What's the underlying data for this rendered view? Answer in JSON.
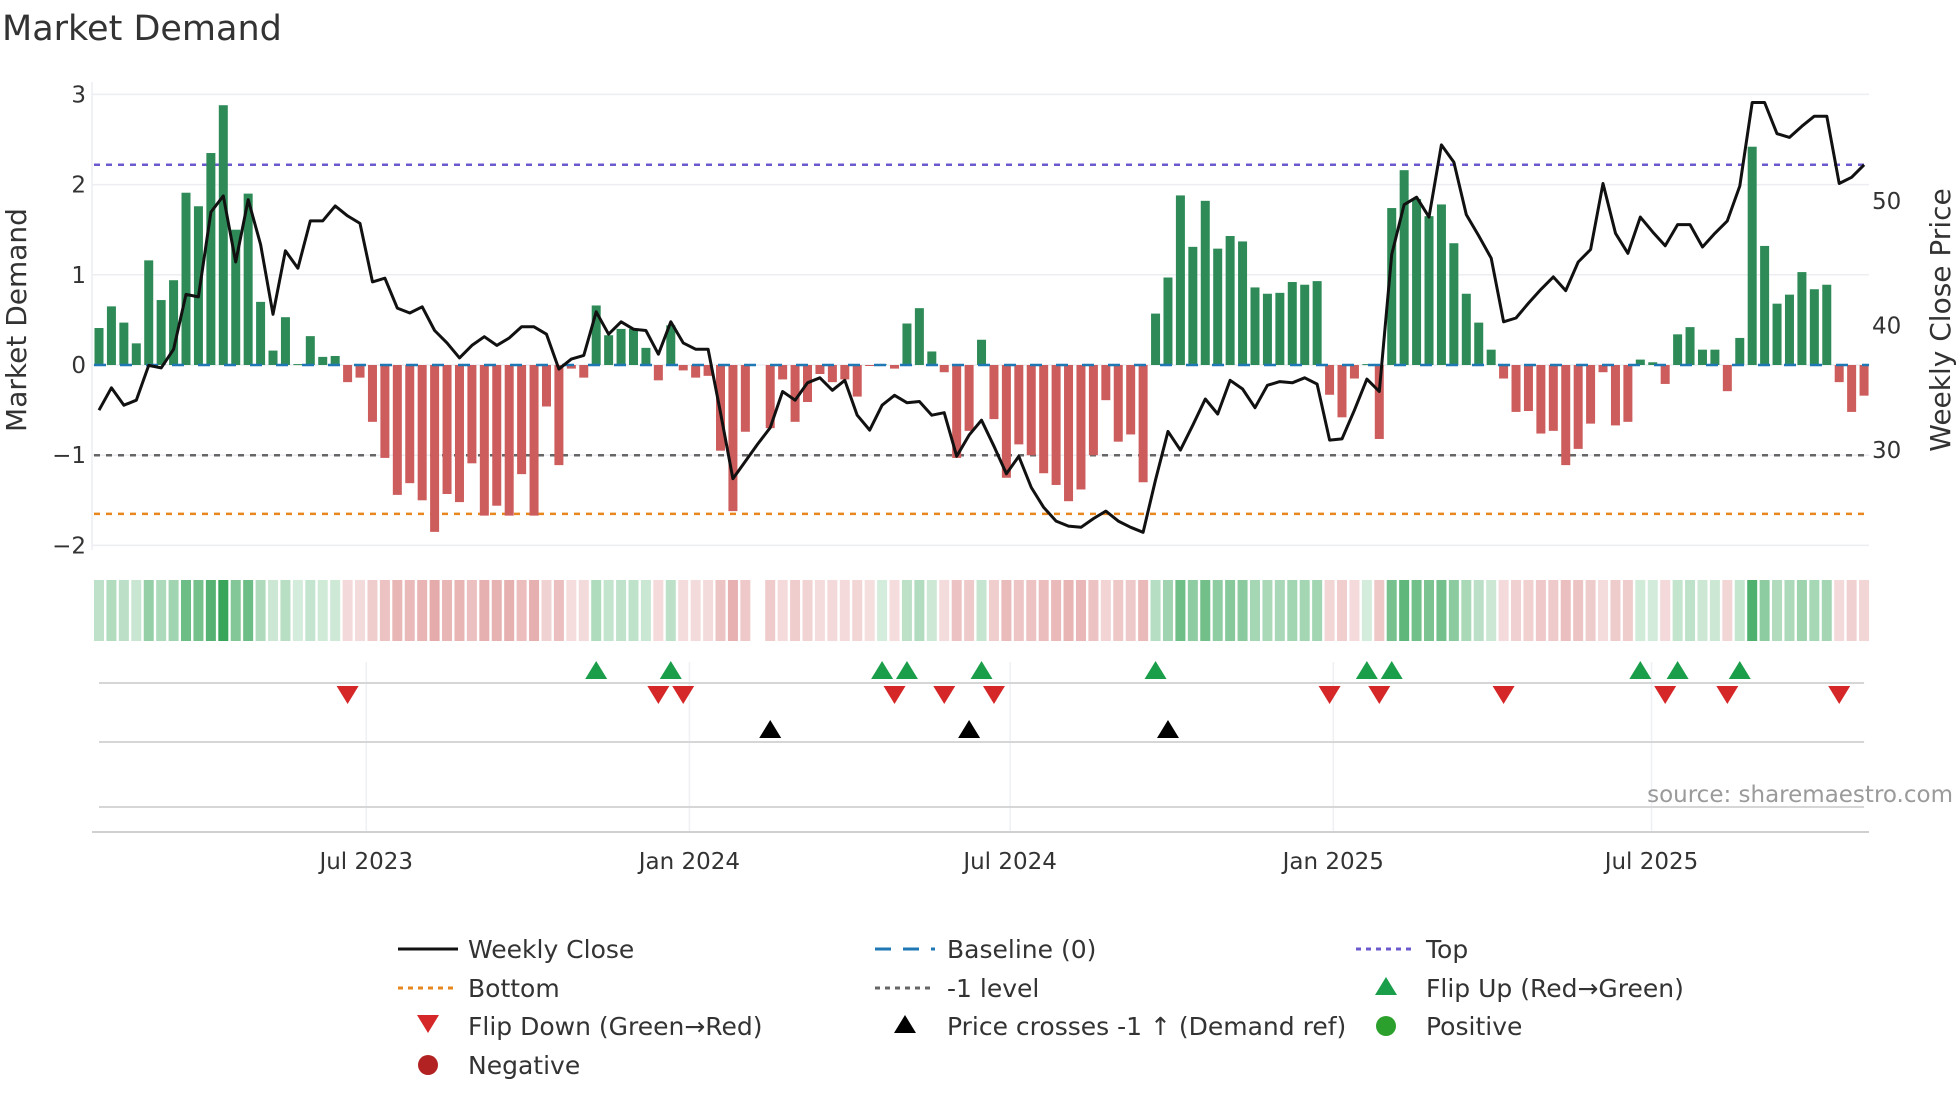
{
  "title": "Market Demand",
  "source": "source: sharemaestro.com",
  "colors": {
    "positive_bar": "#2e8b57",
    "negative_bar": "#cd5c5c",
    "price_line": "#111111",
    "baseline": "#1f77b4",
    "top": "#6a5acd",
    "bottom": "#e8871e",
    "minus_one": "#666666",
    "flip_up": "#1a9e4a",
    "flip_down": "#d62728",
    "price_cross": "#000000",
    "positive_dot": "#2ca02c",
    "negative_dot": "#b22222"
  },
  "legend": [
    {
      "label": "Weekly Close",
      "kind": "line-solid",
      "color": "#111111"
    },
    {
      "label": "Baseline (0)",
      "kind": "line-dashed",
      "color": "#1f77b4"
    },
    {
      "label": "Top",
      "kind": "line-dotted",
      "color": "#6a5acd"
    },
    {
      "label": "Bottom",
      "kind": "line-dotted",
      "color": "#e8871e"
    },
    {
      "label": "-1 level",
      "kind": "line-dotted",
      "color": "#666666"
    },
    {
      "label": "Flip Up (Red→Green)",
      "kind": "triangle-up",
      "color": "#1a9e4a"
    },
    {
      "label": "Flip Down (Green→Red)",
      "kind": "triangle-down",
      "color": "#d62728"
    },
    {
      "label": "Price crosses -1 ↑ (Demand ref)",
      "kind": "triangle-up",
      "color": "#000000"
    },
    {
      "label": "Positive",
      "kind": "dot",
      "color": "#2ca02c"
    },
    {
      "label": "Negative",
      "kind": "dot",
      "color": "#b22222"
    }
  ],
  "chart_data": {
    "type": "bar",
    "title": "Market Demand",
    "ylabel": "Market Demand",
    "y2label": "Weekly Close Price",
    "ylim": [
      -2.2,
      3.2
    ],
    "y2lim": [
      20.9,
      60.0
    ],
    "y_ticks": [
      -2,
      -1,
      0,
      1,
      2,
      3
    ],
    "y_tick_labels": [
      "−2",
      "−1",
      "0",
      "1",
      "2",
      "3"
    ],
    "y2_ticks": [
      30,
      40,
      50
    ],
    "y2_tick_labels": [
      "30",
      "40",
      "50"
    ],
    "x_ticks": [
      {
        "label": "Jul 2023",
        "week": 21.5
      },
      {
        "label": "Jan 2024",
        "week": 47.5
      },
      {
        "label": "Jul 2024",
        "week": 73.3
      },
      {
        "label": "Jan 2025",
        "week": 99.3
      },
      {
        "label": "Jul 2025",
        "week": 124.9
      }
    ],
    "reference_lines": {
      "baseline": 0,
      "top": 2.22,
      "bottom": -1.65,
      "minus_one": -1
    },
    "demand": [
      0.41,
      0.65,
      0.47,
      0.24,
      1.16,
      0.72,
      0.94,
      1.91,
      1.76,
      2.35,
      2.88,
      1.5,
      1.9,
      0.7,
      0.16,
      0.53,
      0.01,
      0.32,
      0.09,
      0.1,
      -0.19,
      -0.14,
      -0.63,
      -1.03,
      -1.44,
      -1.31,
      -1.5,
      -1.85,
      -1.43,
      -1.52,
      -1.09,
      -1.67,
      -1.56,
      -1.67,
      -1.21,
      -1.67,
      -0.46,
      -1.11,
      -0.04,
      -0.14,
      0.66,
      0.33,
      0.4,
      0.4,
      0.19,
      -0.17,
      0.44,
      -0.06,
      -0.14,
      -0.12,
      -0.95,
      -1.62,
      -0.74,
      null,
      -0.7,
      -0.16,
      -0.63,
      -0.41,
      -0.1,
      -0.19,
      -0.16,
      -0.35,
      -0.01,
      0.01,
      -0.04,
      0.46,
      0.63,
      0.15,
      -0.08,
      -1.03,
      -0.73,
      0.28,
      -0.6,
      -1.25,
      -0.88,
      -1.0,
      -1.2,
      -1.33,
      -1.51,
      -1.38,
      -1.0,
      -0.39,
      -0.85,
      -0.77,
      -1.3,
      0.57,
      0.97,
      1.88,
      1.31,
      1.82,
      1.29,
      1.43,
      1.37,
      0.86,
      0.79,
      0.8,
      0.92,
      0.89,
      0.93,
      -0.33,
      -0.58,
      -0.15,
      0.01,
      -0.82,
      1.74,
      2.16,
      1.84,
      1.65,
      1.78,
      1.35,
      0.79,
      0.47,
      0.17,
      -0.15,
      -0.52,
      -0.51,
      -0.76,
      -0.73,
      -1.11,
      -0.93,
      -0.65,
      -0.08,
      -0.67,
      -0.63,
      0.06,
      0.03,
      -0.21,
      0.34,
      0.42,
      0.17,
      0.17,
      -0.29,
      0.3,
      2.42,
      1.32,
      0.68,
      0.78,
      1.03,
      0.84,
      0.89,
      -0.19,
      -0.52,
      -0.34
    ],
    "weekly_close": [
      33.2,
      35.0,
      33.6,
      34.0,
      36.8,
      36.6,
      38.1,
      42.5,
      42.3,
      49.1,
      50.4,
      45.1,
      50.1,
      46.5,
      40.9,
      46.0,
      44.6,
      48.4,
      48.4,
      49.6,
      48.8,
      48.2,
      43.5,
      43.8,
      41.4,
      41.0,
      41.5,
      39.6,
      38.6,
      37.4,
      38.4,
      39.1,
      38.4,
      39.0,
      39.9,
      39.9,
      39.3,
      36.5,
      37.3,
      37.6,
      41.1,
      39.3,
      40.3,
      39.7,
      39.6,
      37.7,
      40.3,
      38.6,
      38.1,
      38.1,
      33.0,
      27.7,
      29.1,
      30.5,
      31.8,
      34.7,
      34.0,
      35.4,
      35.8,
      34.8,
      35.6,
      32.8,
      31.6,
      33.6,
      34.4,
      33.8,
      33.9,
      32.8,
      33.0,
      29.5,
      31.2,
      32.4,
      30.3,
      28.1,
      29.5,
      27.0,
      25.4,
      24.3,
      23.9,
      23.8,
      24.5,
      25.1,
      24.3,
      23.8,
      23.4,
      27.6,
      31.5,
      30.0,
      32.0,
      34.1,
      32.9,
      35.6,
      34.9,
      33.4,
      35.2,
      35.5,
      35.4,
      35.8,
      35.3,
      30.8,
      30.9,
      33.2,
      35.7,
      34.7,
      45.7,
      49.7,
      50.3,
      48.7,
      54.5,
      53.1,
      48.9,
      47.2,
      45.4,
      40.3,
      40.6,
      41.8,
      42.9,
      43.9,
      42.8,
      45.1,
      46.1,
      51.4,
      47.4,
      45.8,
      48.7,
      47.5,
      46.4,
      48.1,
      48.1,
      46.3,
      47.4,
      48.4,
      51.2,
      57.9,
      57.9,
      55.4,
      55.1,
      56.0,
      56.8,
      56.8,
      51.4,
      51.9,
      52.9
    ],
    "flip_up_weeks": [
      40,
      46,
      63,
      65,
      71,
      85,
      102,
      104,
      124,
      127,
      132
    ],
    "flip_down_weeks": [
      20,
      45,
      47,
      64,
      68,
      72,
      99,
      103,
      113,
      126,
      131,
      140
    ],
    "price_cross_weeks": [
      54,
      70,
      86
    ],
    "legend_position": "bottom-center"
  }
}
